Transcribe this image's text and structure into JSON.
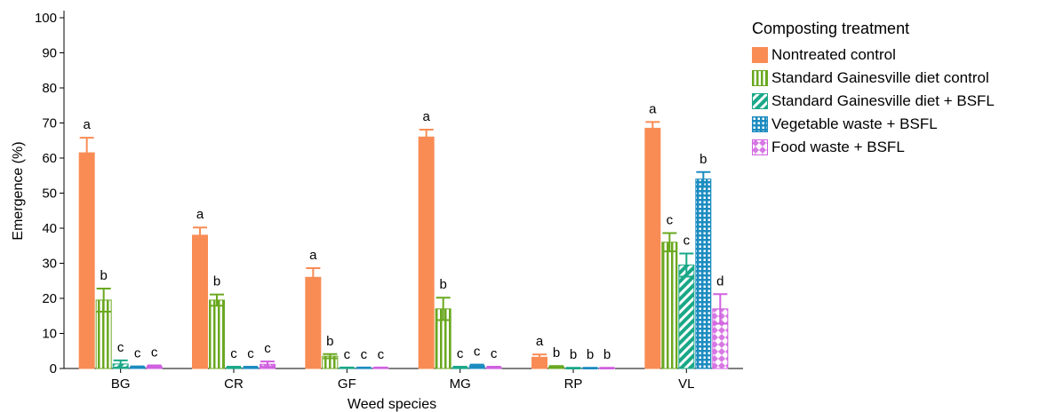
{
  "chart_data": {
    "type": "bar",
    "xlabel": "Weed species",
    "ylabel": "Emergence (%)",
    "ylim": [
      0,
      100
    ],
    "yticks": [
      0,
      10,
      20,
      30,
      40,
      50,
      60,
      70,
      80,
      90,
      100
    ],
    "categories": [
      "BG",
      "CR",
      "GF",
      "MG",
      "RP",
      "VL"
    ],
    "legend_title": "Composting treatment",
    "legend_position": "top-right",
    "grid": false,
    "series": [
      {
        "name": "Nontreated control",
        "color": "#f98c55",
        "pattern": "solid",
        "values": [
          61.5,
          38,
          26,
          66,
          3.2,
          68.5
        ],
        "errors": [
          4.3,
          2.2,
          2.6,
          2.1,
          0.8,
          1.8
        ],
        "letters": [
          "a",
          "a",
          "a",
          "a",
          "a",
          "a"
        ]
      },
      {
        "name": "Standard Gainesville diet control",
        "color": "#6aa820",
        "pattern": "vertical-stripes",
        "values": [
          19.5,
          19.5,
          3.5,
          17,
          0.5,
          36
        ],
        "errors": [
          3.3,
          1.6,
          0.6,
          3.2,
          0.2,
          2.6
        ],
        "letters": [
          "b",
          "b",
          "b",
          "b",
          "b",
          "c"
        ]
      },
      {
        "name": "Standard Gainesville diet + BSFL",
        "color": "#1aa888",
        "pattern": "diagonal-stripes",
        "values": [
          1.3,
          0.3,
          0.2,
          0.3,
          0.1,
          29.5
        ],
        "errors": [
          1.0,
          0.2,
          0.1,
          0.2,
          0.1,
          3.3
        ],
        "letters": [
          "c",
          "c",
          "c",
          "c",
          "b",
          "c"
        ]
      },
      {
        "name": "Vegetable waste + BSFL",
        "color": "#1c8cc0",
        "pattern": "grid",
        "values": [
          0.4,
          0.3,
          0.2,
          0.8,
          0.1,
          54
        ],
        "errors": [
          0.2,
          0.2,
          0.1,
          0.3,
          0.1,
          2.0
        ],
        "letters": [
          "c",
          "c",
          "c",
          "c",
          "b",
          "b"
        ]
      },
      {
        "name": "Food waste + BSFL",
        "color": "#d060e0",
        "pattern": "dots",
        "values": [
          0.6,
          1.2,
          0.2,
          0.3,
          0.1,
          17
        ],
        "errors": [
          0.3,
          0.8,
          0.1,
          0.2,
          0.1,
          4.2
        ],
        "letters": [
          "c",
          "c",
          "c",
          "c",
          "b",
          "d"
        ]
      }
    ]
  }
}
